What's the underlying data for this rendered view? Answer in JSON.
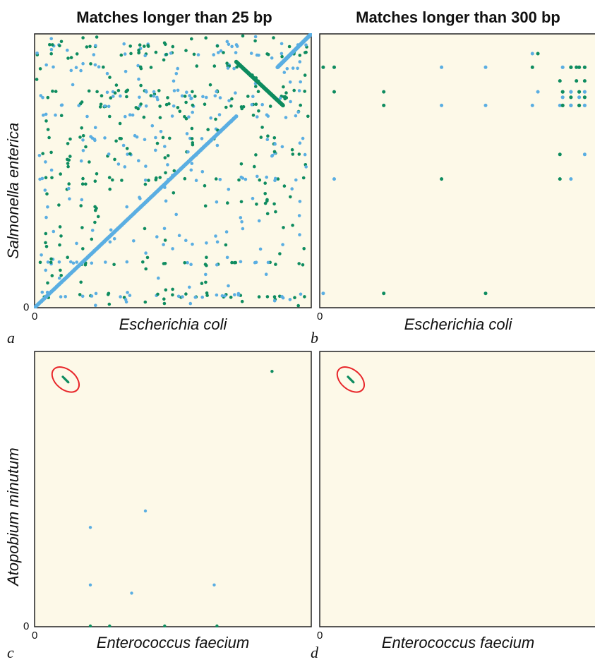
{
  "colors": {
    "background": "#fdf9e8",
    "frame": "#222222",
    "forward_match": "#5aaee2",
    "reverse_match": "#0e8c5f",
    "highlight_ellipse": "#e8262a"
  },
  "chart_data": [
    {
      "type": "scatter",
      "panel": "a",
      "title": "Matches longer than 25 bp",
      "xlabel": "Escherichia coli",
      "ylabel": "Salmonella enterica",
      "x_tick": "0",
      "y_tick": "0",
      "xlim": [
        0,
        1
      ],
      "ylim": [
        0,
        1
      ],
      "series": [
        {
          "color_key": "forward_match",
          "diagonal_segments": [
            [
              0.0,
              0.0,
              0.73,
              0.7
            ],
            [
              0.88,
              0.88,
              1.0,
              1.0
            ]
          ]
        },
        {
          "color_key": "reverse_match",
          "diagonal_segments": [
            [
              0.73,
              0.9,
              0.9,
              0.74
            ]
          ]
        }
      ]
    },
    {
      "type": "scatter",
      "panel": "b",
      "title": "Matches longer than 300 bp",
      "xlabel": "Escherichia coli",
      "ylabel": "",
      "x_tick": "0",
      "y_tick": "",
      "xlim": [
        0,
        1
      ],
      "ylim": [
        0,
        1
      ]
    },
    {
      "type": "scatter",
      "panel": "c",
      "title": "",
      "xlabel": "Enterococcus faecium",
      "ylabel": "Atopobium minutum",
      "x_tick": "0",
      "y_tick": "0",
      "xlim": [
        0,
        1
      ],
      "ylim": [
        0,
        1
      ],
      "segments": [
        {
          "color_key": "reverse_match",
          "from": [
            0.1,
            0.91
          ],
          "to": [
            0.12,
            0.89
          ]
        }
      ],
      "points": [
        {
          "x": 0.86,
          "y": 0.93,
          "color_key": "reverse_match"
        },
        {
          "x": 0.4,
          "y": 0.42,
          "color_key": "forward_match"
        },
        {
          "x": 0.2,
          "y": 0.36,
          "color_key": "forward_match"
        },
        {
          "x": 0.2,
          "y": 0.15,
          "color_key": "forward_match"
        },
        {
          "x": 0.35,
          "y": 0.12,
          "color_key": "forward_match"
        },
        {
          "x": 0.65,
          "y": 0.15,
          "color_key": "forward_match"
        },
        {
          "x": 0.2,
          "y": 0.0,
          "color_key": "reverse_match"
        },
        {
          "x": 0.27,
          "y": 0.0,
          "color_key": "reverse_match"
        },
        {
          "x": 0.47,
          "y": 0.0,
          "color_key": "reverse_match"
        },
        {
          "x": 0.66,
          "y": 0.0,
          "color_key": "reverse_match"
        }
      ]
    },
    {
      "type": "scatter",
      "panel": "d",
      "title": "",
      "xlabel": "Enterococcus faecium",
      "ylabel": "",
      "x_tick": "0",
      "y_tick": "",
      "xlim": [
        0,
        1
      ],
      "ylim": [
        0,
        1
      ],
      "segments": [
        {
          "color_key": "reverse_match",
          "from": [
            0.1,
            0.91
          ],
          "to": [
            0.12,
            0.89
          ]
        }
      ],
      "points": []
    }
  ],
  "panel_letters": [
    "a",
    "b",
    "c",
    "d"
  ]
}
